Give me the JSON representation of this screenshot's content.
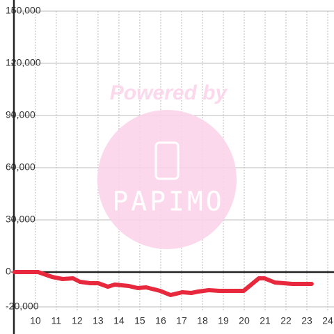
{
  "chart_data": {
    "type": "line",
    "x": [
      9,
      10.13,
      10.8,
      11.3,
      11.8,
      12.13,
      12.63,
      13,
      13.47,
      13.8,
      14.47,
      14.9,
      15.3,
      15.97,
      16.47,
      17.03,
      17.47,
      17.8,
      18.3,
      18.8,
      19.97,
      20.7,
      20.97,
      21.47,
      22.3,
      23.23
    ],
    "series": [
      {
        "color": "#e8283c",
        "values": [
          0,
          0,
          -2800,
          -4000,
          -3600,
          -5600,
          -6400,
          -6400,
          -8400,
          -7200,
          -8000,
          -9200,
          -8800,
          -10800,
          -13200,
          -11600,
          -12000,
          -11200,
          -10400,
          -10800,
          -10800,
          -3600,
          -3600,
          -6000,
          -6800,
          -6800
        ]
      }
    ],
    "xlim": [
      8.97,
      24.3
    ],
    "xticks": [
      10,
      11,
      12,
      13,
      14,
      15,
      16,
      17,
      18,
      19,
      20,
      21,
      22,
      23,
      24
    ],
    "ylim": [
      -20000,
      150000
    ],
    "yticks": [
      {
        "value": -20000,
        "label": "-20,000"
      },
      0,
      {
        "value": 30000,
        "label": "30,000"
      },
      {
        "value": 60000,
        "label": "60,000"
      },
      {
        "value": 90000,
        "label": "90,000"
      },
      {
        "value": 120000,
        "label": "120,000"
      },
      {
        "value": 150000,
        "label": "150,000"
      }
    ],
    "grid": true,
    "watermark": {
      "top": "Powered by",
      "logo": "PAPIMO"
    }
  }
}
